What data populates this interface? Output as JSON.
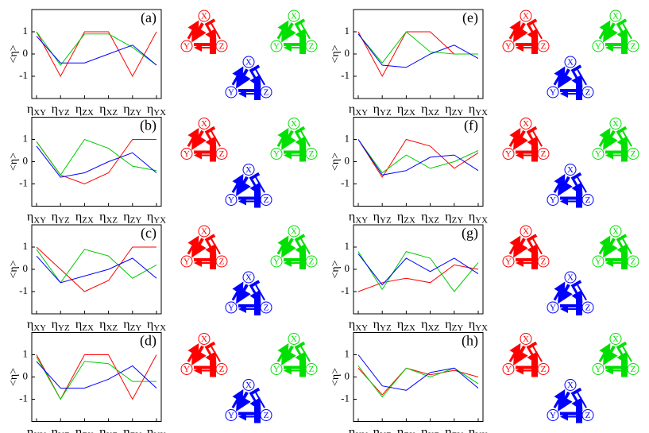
{
  "chart_data": [
    {
      "type": "line",
      "label": "(a)",
      "ylabel": "<η>",
      "categories": [
        "ηXY",
        "ηYZ",
        "ηZX",
        "ηXZ",
        "ηZY",
        "ηYX"
      ],
      "ylim": [
        -2,
        2
      ],
      "yticks": [
        -1,
        0,
        1
      ],
      "series": [
        {
          "color": "#ff0000",
          "values": [
            1,
            -1,
            1,
            1,
            -1,
            1
          ]
        },
        {
          "color": "#00cc00",
          "values": [
            1,
            -0.5,
            0.9,
            0.9,
            0.3,
            -0.5
          ]
        },
        {
          "color": "#0000ff",
          "values": [
            0.8,
            -0.4,
            -0.4,
            0,
            0.4,
            -0.5
          ]
        }
      ]
    },
    {
      "type": "line",
      "label": "(b)",
      "ylabel": "<η>",
      "categories": [
        "ηXY",
        "ηYZ",
        "ηZX",
        "ηXZ",
        "ηZY",
        "ηYX"
      ],
      "ylim": [
        -2,
        2
      ],
      "yticks": [
        -1,
        0,
        1
      ],
      "series": [
        {
          "color": "#ff0000",
          "values": [
            0.9,
            -0.6,
            -1,
            -0.5,
            1,
            1
          ]
        },
        {
          "color": "#00cc00",
          "values": [
            0.9,
            -0.6,
            1,
            0.6,
            -0.2,
            -0.4
          ]
        },
        {
          "color": "#0000ff",
          "values": [
            0.7,
            -0.7,
            -0.5,
            0,
            0.4,
            -0.5
          ]
        }
      ]
    },
    {
      "type": "line",
      "label": "(c)",
      "ylabel": "<η>",
      "categories": [
        "ηXY",
        "ηYZ",
        "ηZX",
        "ηXZ",
        "ηZY",
        "ηYX"
      ],
      "ylim": [
        -2,
        2
      ],
      "yticks": [
        -1,
        0,
        1
      ],
      "series": [
        {
          "color": "#ff0000",
          "values": [
            1,
            0,
            -1,
            -0.5,
            1,
            1
          ]
        },
        {
          "color": "#00cc00",
          "values": [
            0.9,
            -0.6,
            0.9,
            0.6,
            -0.4,
            0.2
          ]
        },
        {
          "color": "#0000ff",
          "values": [
            0.6,
            -0.6,
            -0.3,
            0,
            0.5,
            -0.4
          ]
        }
      ]
    },
    {
      "type": "line",
      "label": "(d)",
      "ylabel": "<η>",
      "categories": [
        "ηXY",
        "ηYZ",
        "ηZX",
        "ηXZ",
        "ηZY",
        "ηYX"
      ],
      "ylim": [
        -2,
        2
      ],
      "yticks": [
        -1,
        0,
        1
      ],
      "series": [
        {
          "color": "#ff0000",
          "values": [
            1,
            -1,
            1,
            1,
            -1,
            1
          ]
        },
        {
          "color": "#00cc00",
          "values": [
            0.9,
            -1,
            0.7,
            0.6,
            -0.2,
            -0.2
          ]
        },
        {
          "color": "#0000ff",
          "values": [
            0.7,
            -0.5,
            -0.5,
            -0.1,
            0.5,
            -0.5
          ]
        }
      ]
    },
    {
      "type": "line",
      "label": "(e)",
      "ylabel": "<η>",
      "categories": [
        "ηXY",
        "ηYZ",
        "ηZX",
        "ηXZ",
        "ηZY",
        "ηYX"
      ],
      "ylim": [
        -2,
        2
      ],
      "yticks": [
        -1,
        0,
        1
      ],
      "series": [
        {
          "color": "#ff0000",
          "values": [
            1,
            -1,
            1,
            1,
            0,
            0
          ]
        },
        {
          "color": "#00cc00",
          "values": [
            0.9,
            -0.4,
            1,
            0.1,
            0,
            0
          ]
        },
        {
          "color": "#0000ff",
          "values": [
            0.9,
            -0.5,
            -0.6,
            0,
            0.4,
            -0.2
          ]
        }
      ]
    },
    {
      "type": "line",
      "label": "(f)",
      "ylabel": "<η>",
      "categories": [
        "ηXY",
        "ηYZ",
        "ηZX",
        "ηXZ",
        "ηZY",
        "ηYX"
      ],
      "ylim": [
        -2,
        2
      ],
      "yticks": [
        -1,
        0,
        1
      ],
      "series": [
        {
          "color": "#ff0000",
          "values": [
            1,
            -0.7,
            1,
            0.7,
            -0.3,
            0.4
          ]
        },
        {
          "color": "#00cc00",
          "values": [
            1,
            -0.5,
            0.3,
            -0.3,
            0,
            0.5
          ]
        },
        {
          "color": "#0000ff",
          "values": [
            1,
            -0.6,
            -0.4,
            0.2,
            0.3,
            -0.4
          ]
        }
      ]
    },
    {
      "type": "line",
      "label": "(g)",
      "ylabel": "<η>",
      "categories": [
        "ηXY",
        "ηYZ",
        "ηZX",
        "ηXZ",
        "ηZY",
        "ηYX"
      ],
      "ylim": [
        -2,
        2
      ],
      "yticks": [
        -1,
        0,
        1
      ],
      "series": [
        {
          "color": "#ff0000",
          "values": [
            -1,
            -0.6,
            -0.4,
            -0.6,
            0.2,
            0
          ]
        },
        {
          "color": "#00cc00",
          "values": [
            0.8,
            -0.9,
            0.8,
            0.5,
            -1,
            0.3
          ]
        },
        {
          "color": "#0000ff",
          "values": [
            0.7,
            -0.7,
            0.5,
            -0.1,
            0.5,
            -0.2
          ]
        }
      ]
    },
    {
      "type": "line",
      "label": "(h)",
      "ylabel": "<η>",
      "categories": [
        "ηXY",
        "ηYZ",
        "ηZX",
        "ηXZ",
        "ηZY",
        "ηYX"
      ],
      "ylim": [
        -2,
        2
      ],
      "yticks": [
        -1,
        0,
        1
      ],
      "series": [
        {
          "color": "#ff0000",
          "values": [
            0.4,
            -0.8,
            0.4,
            0.1,
            0.3,
            0
          ]
        },
        {
          "color": "#00cc00",
          "values": [
            0.5,
            -0.9,
            0.4,
            0,
            0.4,
            -0.3
          ]
        },
        {
          "color": "#0000ff",
          "values": [
            1,
            -0.4,
            -0.6,
            0.2,
            0.4,
            -0.5
          ]
        }
      ]
    }
  ],
  "diagram": {
    "nodes": [
      "X",
      "Y",
      "Z"
    ]
  }
}
